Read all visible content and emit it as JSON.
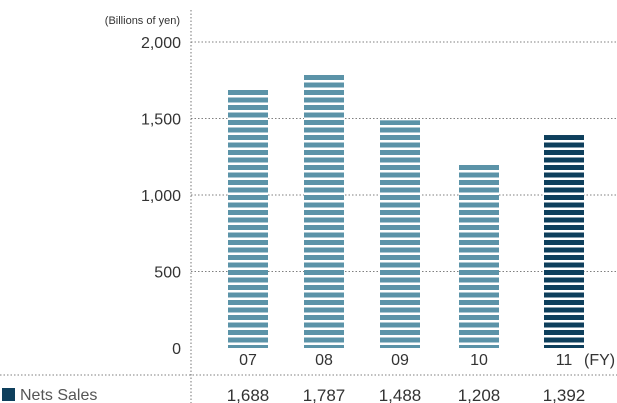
{
  "chart_data": {
    "type": "bar",
    "unit_label": "(Billions of yen)",
    "categories": [
      "07",
      "08",
      "09",
      "10",
      "11"
    ],
    "x_suffix": "(FY)",
    "series": [
      {
        "name": "Nets Sales",
        "values": [
          1688,
          1787,
          1488,
          1208,
          1392
        ],
        "value_labels": [
          "1,688",
          "1,787",
          "1,488",
          "1,208",
          "1,392"
        ]
      }
    ],
    "ylim": [
      0,
      2000
    ],
    "yticks": [
      0,
      500,
      1000,
      1500,
      2000
    ],
    "ytick_labels": [
      "0",
      "500",
      "1,000",
      "1,500",
      "2,000"
    ],
    "grid": true,
    "highlight_index": 4,
    "colors": {
      "bar": "#5b93a8",
      "bar_highlight": "#0e3f5c",
      "stripe": "#ffffff",
      "grid": "#555555",
      "legend_marker": "#0e3f5c",
      "text": "#333333"
    }
  }
}
